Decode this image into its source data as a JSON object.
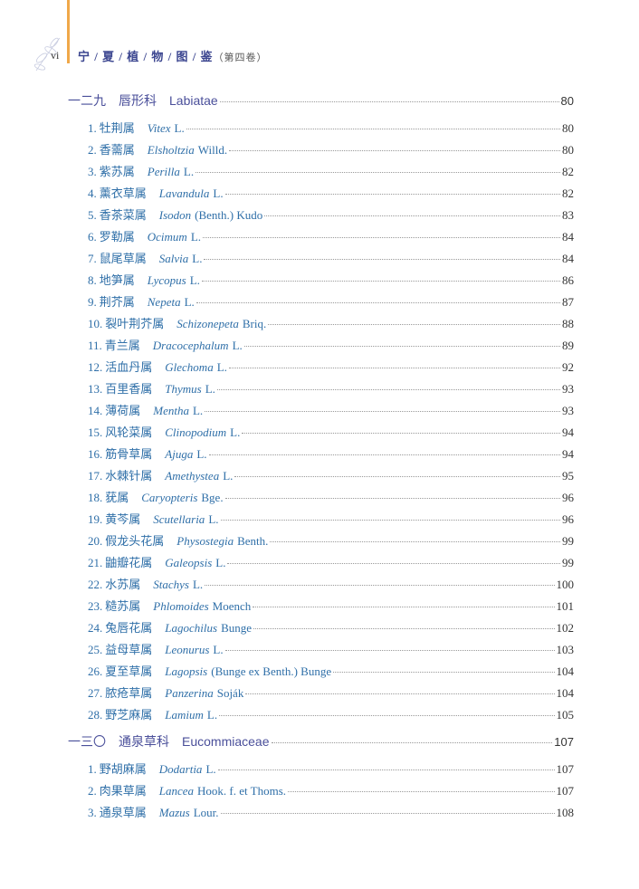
{
  "header": {
    "page_number": "vi",
    "title": "宁 / 夏 / 植 / 物 / 图 / 鉴",
    "volume": "（第四卷）",
    "accent_color": "#f0a84a",
    "title_color": "#3c4690"
  },
  "sections": [
    {
      "num": "一二九",
      "cn": "唇形科",
      "latin": "Labiatae",
      "page": "80",
      "entries": [
        {
          "no": "1.",
          "cn": "牡荆属",
          "genus": "Vitex",
          "author": "L.",
          "page": "80"
        },
        {
          "no": "2.",
          "cn": "香薷属",
          "genus": "Elsholtzia",
          "author": "Willd.",
          "page": "80"
        },
        {
          "no": "3.",
          "cn": "紫苏属",
          "genus": "Perilla",
          "author": "L.",
          "page": "82"
        },
        {
          "no": "4.",
          "cn": "薰衣草属",
          "genus": "Lavandula",
          "author": "L.",
          "page": "82"
        },
        {
          "no": "5.",
          "cn": "香茶菜属",
          "genus": "Isodon",
          "author": "(Benth.) Kudo",
          "page": "83"
        },
        {
          "no": "6.",
          "cn": "罗勒属",
          "genus": "Ocimum",
          "author": "L.",
          "page": "84"
        },
        {
          "no": "7.",
          "cn": "鼠尾草属",
          "genus": "Salvia",
          "author": "L.",
          "page": "84"
        },
        {
          "no": "8.",
          "cn": "地笋属",
          "genus": "Lycopus",
          "author": "L.",
          "page": "86"
        },
        {
          "no": "9.",
          "cn": "荆芥属",
          "genus": "Nepeta",
          "author": "L.",
          "page": "87"
        },
        {
          "no": "10.",
          "cn": "裂叶荆芥属",
          "genus": "Schizonepeta",
          "author": "Briq.",
          "page": "88"
        },
        {
          "no": "11.",
          "cn": "青兰属",
          "genus": "Dracocephalum",
          "author": "L.",
          "page": "89"
        },
        {
          "no": "12.",
          "cn": "活血丹属",
          "genus": "Glechoma",
          "author": "L.",
          "page": "92"
        },
        {
          "no": "13.",
          "cn": "百里香属",
          "genus": "Thymus",
          "author": "L.",
          "page": "93"
        },
        {
          "no": "14.",
          "cn": "薄荷属",
          "genus": "Mentha",
          "author": "L.",
          "page": "93"
        },
        {
          "no": "15.",
          "cn": "风轮菜属",
          "genus": "Clinopodium",
          "author": "L.",
          "page": "94"
        },
        {
          "no": "16.",
          "cn": "筋骨草属",
          "genus": "Ajuga",
          "author": "L.",
          "page": "94"
        },
        {
          "no": "17.",
          "cn": "水棘针属",
          "genus": "Amethystea",
          "author": "L.",
          "page": "95"
        },
        {
          "no": "18.",
          "cn": "莸属",
          "genus": "Caryopteris",
          "author": "Bge.",
          "page": "96"
        },
        {
          "no": "19.",
          "cn": "黄芩属",
          "genus": "Scutellaria",
          "author": "L.",
          "page": "96"
        },
        {
          "no": "20.",
          "cn": "假龙头花属",
          "genus": "Physostegia",
          "author": "Benth.",
          "page": "99"
        },
        {
          "no": "21.",
          "cn": "鼬瓣花属",
          "genus": "Galeopsis",
          "author": "L.",
          "page": "99"
        },
        {
          "no": "22.",
          "cn": "水苏属",
          "genus": "Stachys",
          "author": "L.",
          "page": "100"
        },
        {
          "no": "23.",
          "cn": "糙苏属",
          "genus": "Phlomoides",
          "author": "Moench",
          "page": "101"
        },
        {
          "no": "24.",
          "cn": "兔唇花属",
          "genus": "Lagochilus",
          "author": "Bunge",
          "page": "102"
        },
        {
          "no": "25.",
          "cn": "益母草属",
          "genus": "Leonurus",
          "author": "L.",
          "page": "103"
        },
        {
          "no": "26.",
          "cn": "夏至草属",
          "genus": "Lagopsis",
          "author": "(Bunge ex Benth.) Bunge",
          "page": "104"
        },
        {
          "no": "27.",
          "cn": "脓疮草属",
          "genus": "Panzerina",
          "author": "Soják",
          "page": "104"
        },
        {
          "no": "28.",
          "cn": "野芝麻属",
          "genus": "Lamium",
          "author": "L.",
          "page": "105"
        }
      ]
    },
    {
      "num": "一三〇",
      "cn": "通泉草科",
      "latin": "Eucommiaceae",
      "page": "107",
      "entries": [
        {
          "no": "1.",
          "cn": "野胡麻属",
          "genus": "Dodartia",
          "author": "L.",
          "page": "107"
        },
        {
          "no": "2.",
          "cn": "肉果草属",
          "genus": "Lancea",
          "author": "Hook. f. et Thoms.",
          "page": "107"
        },
        {
          "no": "3.",
          "cn": "通泉草属",
          "genus": "Mazus",
          "author": "Lour.",
          "page": "108"
        }
      ]
    }
  ]
}
